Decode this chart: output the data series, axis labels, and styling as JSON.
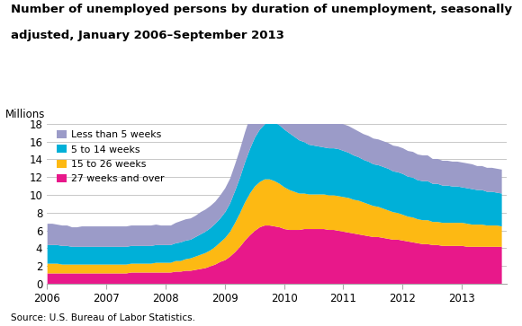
{
  "title_line1": "Number of unemployed persons by duration of unemployment, seasonally",
  "title_line2": "adjusted, January 2006–September 2013",
  "ylabel": "Millions",
  "source": "Source: U.S. Bureau of Labor Statistics.",
  "ylim": [
    0,
    18
  ],
  "yticks": [
    0,
    2,
    4,
    6,
    8,
    10,
    12,
    14,
    16,
    18
  ],
  "xlim_start": 2006.0,
  "xlim_end": 2013.75,
  "colors": {
    "lt5": "#9b9bc8",
    "w5to14": "#00b0d8",
    "w15to26": "#fdb913",
    "w27over": "#e8188a"
  },
  "legend_labels": [
    "Less than 5 weeks",
    "5 to 14 weeks",
    "15 to 26 weeks",
    "27 weeks and over"
  ],
  "legend_colors": [
    "#9b9bc8",
    "#00b0d8",
    "#fdb913",
    "#e8188a"
  ],
  "data": {
    "lt5": [
      2.4,
      2.4,
      2.3,
      2.3,
      2.3,
      2.2,
      2.2,
      2.3,
      2.3,
      2.3,
      2.3,
      2.3,
      2.3,
      2.3,
      2.3,
      2.3,
      2.3,
      2.3,
      2.3,
      2.3,
      2.3,
      2.3,
      2.3,
      2.2,
      2.2,
      2.2,
      2.3,
      2.4,
      2.4,
      2.4,
      2.4,
      2.5,
      2.5,
      2.5,
      2.5,
      2.6,
      2.7,
      2.8,
      3.0,
      3.2,
      3.4,
      3.6,
      3.7,
      3.8,
      3.8,
      3.8,
      3.8,
      3.7,
      3.6,
      3.5,
      3.4,
      3.3,
      3.2,
      3.1,
      3.1,
      3.1,
      3.1,
      3.1,
      3.1,
      3.1,
      3.0,
      3.0,
      3.0,
      2.9,
      2.9,
      2.9,
      2.9,
      2.9,
      2.9,
      2.9,
      2.9,
      2.9,
      2.9,
      2.9,
      2.9,
      2.9,
      2.9,
      2.9,
      2.8,
      2.8,
      2.8,
      2.8,
      2.8,
      2.8,
      2.8,
      2.8,
      2.8,
      2.7,
      2.7,
      2.7,
      2.7,
      2.7,
      2.7
    ],
    "w5to14": [
      2.1,
      2.1,
      2.1,
      2.1,
      2.1,
      2.0,
      2.0,
      2.0,
      2.0,
      2.0,
      2.0,
      2.0,
      2.0,
      2.0,
      2.0,
      2.0,
      2.0,
      2.0,
      2.0,
      2.0,
      2.0,
      2.0,
      2.0,
      2.0,
      2.0,
      2.0,
      2.0,
      2.1,
      2.1,
      2.1,
      2.2,
      2.3,
      2.4,
      2.5,
      2.6,
      2.7,
      2.9,
      3.2,
      3.6,
      4.0,
      4.5,
      5.0,
      5.5,
      5.9,
      6.2,
      6.5,
      6.6,
      6.6,
      6.5,
      6.4,
      6.2,
      6.0,
      5.8,
      5.6,
      5.5,
      5.4,
      5.3,
      5.3,
      5.3,
      5.3,
      5.2,
      5.1,
      5.0,
      4.9,
      4.8,
      4.8,
      4.7,
      4.7,
      4.7,
      4.7,
      4.6,
      4.6,
      4.6,
      4.5,
      4.5,
      4.4,
      4.4,
      4.4,
      4.3,
      4.3,
      4.2,
      4.2,
      4.1,
      4.1,
      4.0,
      4.0,
      4.0,
      3.9,
      3.9,
      3.8,
      3.8,
      3.7,
      3.7
    ],
    "w15to26": [
      1.1,
      1.1,
      1.1,
      1.0,
      1.0,
      1.0,
      1.0,
      1.0,
      1.0,
      1.0,
      1.0,
      1.0,
      1.0,
      1.0,
      1.0,
      1.0,
      1.0,
      1.0,
      1.0,
      1.0,
      1.0,
      1.0,
      1.1,
      1.1,
      1.1,
      1.1,
      1.2,
      1.2,
      1.3,
      1.4,
      1.5,
      1.6,
      1.7,
      1.8,
      2.0,
      2.2,
      2.5,
      2.8,
      3.3,
      3.8,
      4.3,
      4.7,
      5.0,
      5.1,
      5.2,
      5.2,
      5.1,
      4.9,
      4.7,
      4.5,
      4.3,
      4.1,
      4.0,
      3.9,
      3.9,
      3.9,
      3.9,
      3.9,
      3.9,
      3.9,
      3.9,
      3.9,
      3.8,
      3.8,
      3.7,
      3.6,
      3.5,
      3.4,
      3.3,
      3.2,
      3.1,
      3.0,
      2.9,
      2.8,
      2.8,
      2.7,
      2.7,
      2.7,
      2.6,
      2.6,
      2.6,
      2.6,
      2.6,
      2.6,
      2.6,
      2.6,
      2.5,
      2.5,
      2.5,
      2.4,
      2.4,
      2.4,
      2.3
    ],
    "w27over": [
      1.2,
      1.2,
      1.2,
      1.2,
      1.2,
      1.2,
      1.2,
      1.2,
      1.2,
      1.2,
      1.2,
      1.2,
      1.2,
      1.2,
      1.2,
      1.2,
      1.2,
      1.3,
      1.3,
      1.3,
      1.3,
      1.3,
      1.3,
      1.3,
      1.3,
      1.3,
      1.4,
      1.4,
      1.5,
      1.5,
      1.6,
      1.7,
      1.8,
      2.0,
      2.2,
      2.5,
      2.7,
      3.1,
      3.6,
      4.2,
      4.9,
      5.5,
      6.0,
      6.4,
      6.6,
      6.6,
      6.5,
      6.4,
      6.2,
      6.1,
      6.1,
      6.1,
      6.2,
      6.2,
      6.2,
      6.2,
      6.2,
      6.1,
      6.1,
      6.0,
      5.9,
      5.8,
      5.7,
      5.6,
      5.5,
      5.4,
      5.3,
      5.3,
      5.2,
      5.1,
      5.0,
      5.0,
      4.9,
      4.8,
      4.7,
      4.6,
      4.5,
      4.5,
      4.4,
      4.4,
      4.3,
      4.3,
      4.3,
      4.3,
      4.3,
      4.2,
      4.2,
      4.2,
      4.2,
      4.2,
      4.2,
      4.2,
      4.2
    ]
  }
}
